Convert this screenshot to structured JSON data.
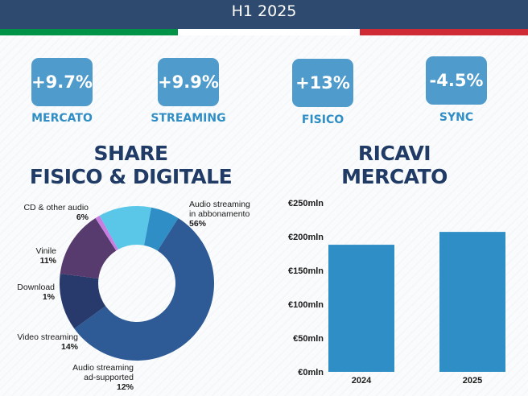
{
  "header": {
    "title": "H1 2025"
  },
  "flag_colors": [
    "#009246",
    "#ffffff",
    "#ce2b37"
  ],
  "kpis": [
    {
      "value": "+9.7%",
      "label": "MERCATO"
    },
    {
      "value": "+9.9%",
      "label": "STREAMING"
    },
    {
      "value": "+13%",
      "label": "FISICO"
    },
    {
      "value": "-4.5%",
      "label": "SYNC"
    }
  ],
  "share_section": {
    "title_line1": "SHARE",
    "title_line2": "FISICO & DIGITALE"
  },
  "revenue_section": {
    "title_line1": "RICAVI",
    "title_line2": "MERCATO"
  },
  "chart_data": [
    {
      "type": "pie",
      "donut": true,
      "slices": [
        {
          "label_line1": "Audio streaming",
          "label_line2": "in abbonamento",
          "pct_text": "56%",
          "value": 56,
          "color": "#2e5b96"
        },
        {
          "label_line1": "Audio streaming",
          "label_line2": "ad-supported",
          "pct_text": "12%",
          "value": 12,
          "color": "#283a6b"
        },
        {
          "label_line1": "Video streaming",
          "label_line2": "",
          "pct_text": "14%",
          "value": 14,
          "color": "#573a6e"
        },
        {
          "label_line1": "Download",
          "label_line2": "",
          "pct_text": "1%",
          "value": 1,
          "color": "#c77ee0"
        },
        {
          "label_line1": "Vinile",
          "label_line2": "",
          "pct_text": "11%",
          "value": 11,
          "color": "#5bc7e8"
        },
        {
          "label_line1": "CD & other audio",
          "label_line2": "",
          "pct_text": "6%",
          "value": 6,
          "color": "#2f8ec6"
        }
      ]
    },
    {
      "type": "bar",
      "categories": [
        "2024",
        "2025"
      ],
      "values": [
        188,
        207
      ],
      "ylim": [
        0,
        250
      ],
      "yticks": [
        "€0mln",
        "€50mln",
        "€100mln",
        "€150mln",
        "€200mln",
        "€250mln"
      ],
      "color": "#2f8ec6",
      "grid": false
    }
  ]
}
